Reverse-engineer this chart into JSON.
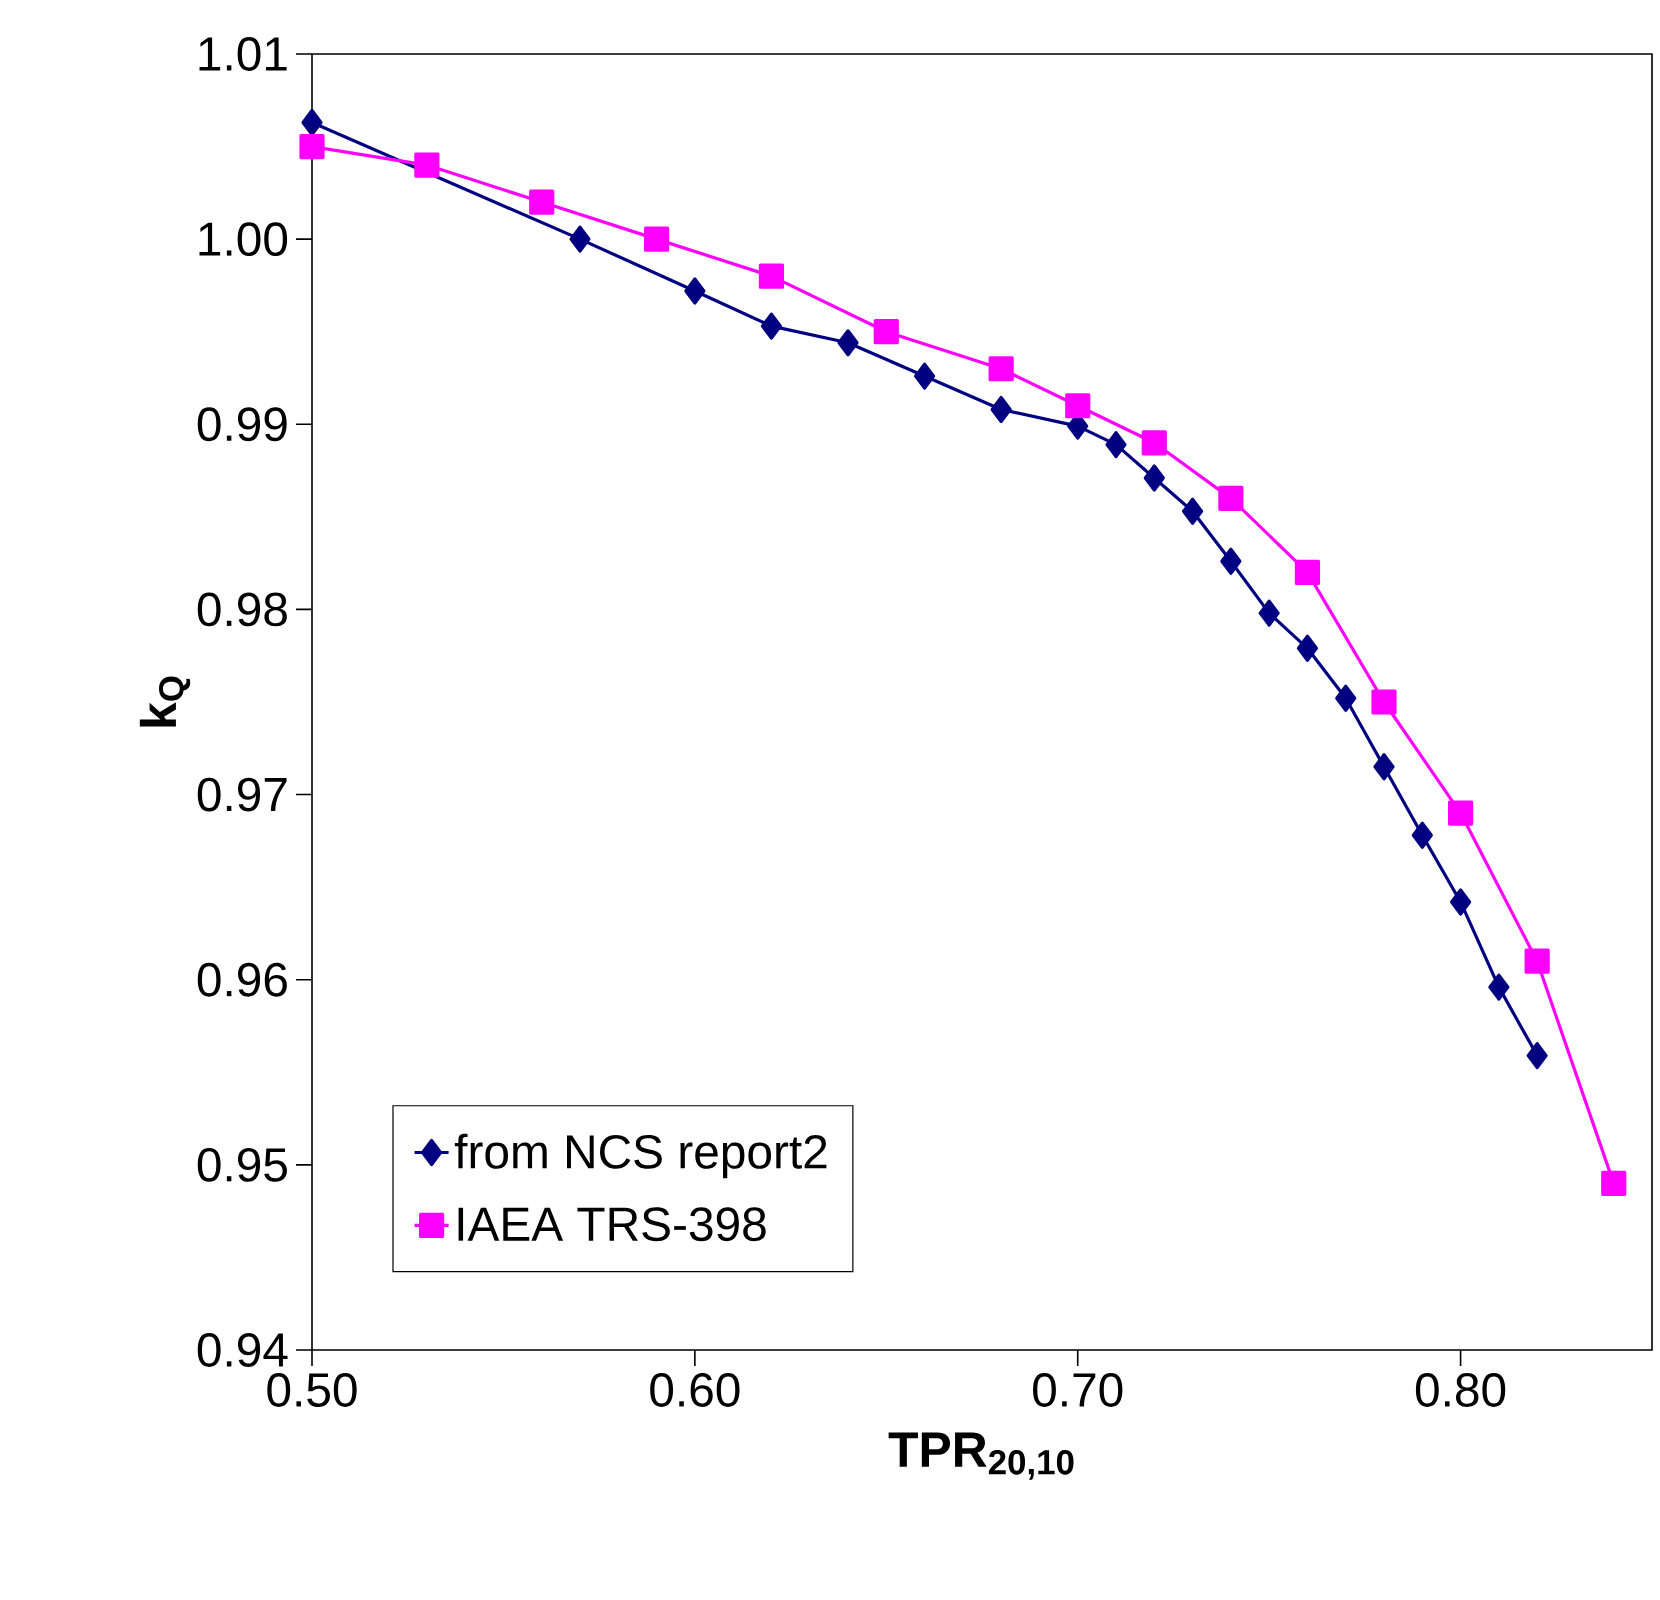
{
  "chart_data": {
    "type": "line",
    "xlabel": "TPR$_{20,10}$",
    "ylabel": "k$_{Q}$",
    "xlim": [
      0.5,
      0.85
    ],
    "ylim": [
      0.94,
      1.01
    ],
    "xticks": [
      {
        "value": 0.5,
        "label": "0.50"
      },
      {
        "value": 0.6,
        "label": "0.60"
      },
      {
        "value": 0.7,
        "label": "0.70"
      },
      {
        "value": 0.8,
        "label": "0.80"
      }
    ],
    "yticks": [
      {
        "value": 0.94,
        "label": "0.94"
      },
      {
        "value": 0.95,
        "label": "0.95"
      },
      {
        "value": 0.96,
        "label": "0.96"
      },
      {
        "value": 0.97,
        "label": "0.97"
      },
      {
        "value": 0.98,
        "label": "0.98"
      },
      {
        "value": 0.99,
        "label": "0.99"
      },
      {
        "value": 1.0,
        "label": "1.00"
      },
      {
        "value": 1.01,
        "label": "1.01"
      }
    ],
    "grid": false,
    "legend": "bottom left",
    "line_style": "solid",
    "series": [
      {
        "name": "from NCS report2",
        "color": "#000080",
        "marker": "diamond",
        "x": [
          0.5,
          0.57,
          0.6,
          0.62,
          0.64,
          0.66,
          0.68,
          0.7,
          0.71,
          0.72,
          0.73,
          0.74,
          0.75,
          0.76,
          0.77,
          0.78,
          0.79,
          0.8,
          0.81,
          0.82
        ],
        "values": [
          1.0063,
          1.0,
          0.9972,
          0.9953,
          0.9944,
          0.9926,
          0.9908,
          0.9899,
          0.9889,
          0.9871,
          0.9853,
          0.9826,
          0.9798,
          0.9779,
          0.9752,
          0.9715,
          0.9678,
          0.9642,
          0.9596,
          0.9559
        ]
      },
      {
        "name": "IAEA TRS-398",
        "color": "#ff00ff",
        "marker": "square",
        "x": [
          0.5,
          0.53,
          0.56,
          0.59,
          0.62,
          0.65,
          0.68,
          0.7,
          0.72,
          0.74,
          0.76,
          0.78,
          0.8,
          0.82,
          0.84
        ],
        "values": [
          1.005,
          1.004,
          1.002,
          1.0,
          0.998,
          0.995,
          0.993,
          0.991,
          0.989,
          0.986,
          0.982,
          0.975,
          0.969,
          0.961,
          0.949
        ]
      }
    ]
  }
}
